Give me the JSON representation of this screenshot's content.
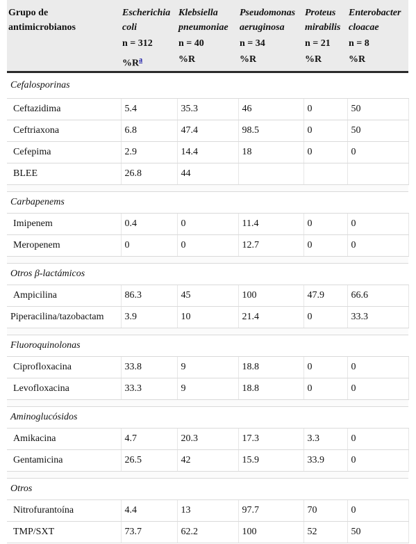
{
  "header": {
    "col0": [
      "Grupo de",
      "antimicrobianos"
    ],
    "organisms": [
      {
        "line1": "Escherichia",
        "line2": "coli",
        "n": "n = 312",
        "unit": "%R",
        "note": "a"
      },
      {
        "line1": "Klebsiella",
        "line2": "pneumoniae",
        "n": "n = 40",
        "unit": "%R",
        "note": ""
      },
      {
        "line1": "Pseudomonas",
        "line2": "aeruginosa",
        "n": "n = 34",
        "unit": "%R",
        "note": ""
      },
      {
        "line1": "Proteus",
        "line2": "mirabilis",
        "n": "n = 21",
        "unit": "%R",
        "note": ""
      },
      {
        "line1": "Enterobacter",
        "line2": "cloacae",
        "n": "n = 8",
        "unit": "%R",
        "note": ""
      }
    ]
  },
  "groups": [
    {
      "name": "Cefalosporinas",
      "rows": [
        {
          "drug": "Ceftazidima",
          "v": [
            "5.4",
            "35.3",
            "46",
            "0",
            "50"
          ]
        },
        {
          "drug": "Ceftriaxona",
          "v": [
            "6.8",
            "47.4",
            "98.5",
            "0",
            "50"
          ]
        },
        {
          "drug": "Cefepima",
          "v": [
            "2.9",
            "14.4",
            "18",
            "0",
            "0"
          ]
        },
        {
          "drug": "BLEE",
          "v": [
            "26.8",
            "44",
            "",
            "",
            ""
          ]
        }
      ]
    },
    {
      "name": "Carbapenems",
      "rows": [
        {
          "drug": "Imipenem",
          "v": [
            "0.4",
            "0",
            "11.4",
            "0",
            "0"
          ]
        },
        {
          "drug": "Meropenem",
          "v": [
            "0",
            "0",
            "12.7",
            "0",
            "0"
          ]
        }
      ]
    },
    {
      "name": "Otros β-lactámicos",
      "rows": [
        {
          "drug": "Ampicilina",
          "v": [
            "86.3",
            "45",
            "100",
            "47.9",
            "66.6"
          ]
        },
        {
          "drug": "Piperacilina/tazobactam",
          "v": [
            "3.9",
            "10",
            "21.4",
            "0",
            "33.3"
          ]
        }
      ]
    },
    {
      "name": "Fluoroquinolonas",
      "rows": [
        {
          "drug": "Ciprofloxacina",
          "v": [
            "33.8",
            "9",
            "18.8",
            "0",
            "0"
          ]
        },
        {
          "drug": "Levofloxacina",
          "v": [
            "33.3",
            "9",
            "18.8",
            "0",
            "0"
          ]
        }
      ]
    },
    {
      "name": "Aminoglucósidos",
      "rows": [
        {
          "drug": "Amikacina",
          "v": [
            "4.7",
            "20.3",
            "17.3",
            "3.3",
            "0"
          ]
        },
        {
          "drug": "Gentamicina",
          "v": [
            "26.5",
            "42",
            "15.9",
            "33.9",
            "0"
          ]
        }
      ]
    },
    {
      "name": "Otros",
      "rows": [
        {
          "drug": "Nitrofurantoína",
          "v": [
            "4.4",
            "13",
            "97.7",
            "70",
            "0"
          ]
        },
        {
          "drug": "TMP/SXT",
          "v": [
            "73.7",
            "62.2",
            "100",
            "52",
            "50"
          ]
        }
      ]
    }
  ]
}
